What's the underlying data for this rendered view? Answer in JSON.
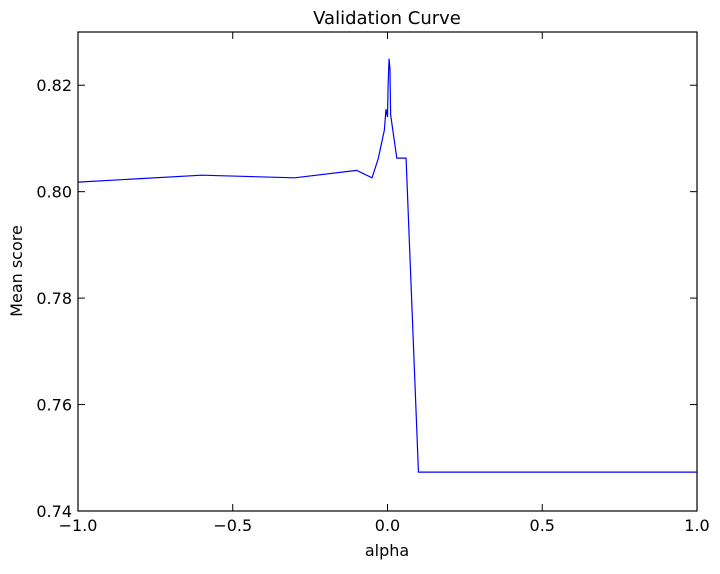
{
  "chart_data": {
    "type": "line",
    "title": "Validation Curve",
    "xlabel": "alpha",
    "ylabel": "Mean score",
    "xlim": [
      -1.0,
      1.0
    ],
    "ylim": [
      0.74,
      0.83
    ],
    "x_ticks": [
      -1.0,
      -0.5,
      0.0,
      0.5,
      1.0
    ],
    "x_tick_labels": [
      "−1.0",
      "−0.5",
      "0.0",
      "0.5",
      "1.0"
    ],
    "y_ticks": [
      0.74,
      0.76,
      0.78,
      0.8,
      0.82
    ],
    "y_tick_labels": [
      "0.74",
      "0.76",
      "0.78",
      "0.80",
      "0.82"
    ],
    "grid": false,
    "line_color": "#0000ff",
    "series": [
      {
        "x": [
          -1.0,
          -0.6,
          -0.3,
          -0.1,
          -0.05,
          -0.03,
          -0.01,
          -0.005,
          0.0,
          0.002,
          0.005,
          0.008,
          0.01,
          0.03,
          0.05,
          0.06,
          0.1,
          0.2,
          0.5,
          1.0
        ],
        "y": [
          0.8018,
          0.8031,
          0.8026,
          0.804,
          0.8026,
          0.8062,
          0.8116,
          0.8155,
          0.814,
          0.82,
          0.825,
          0.823,
          0.8145,
          0.8063,
          0.8063,
          0.8063,
          0.7473,
          0.7473,
          0.7473,
          0.7473
        ]
      }
    ]
  }
}
